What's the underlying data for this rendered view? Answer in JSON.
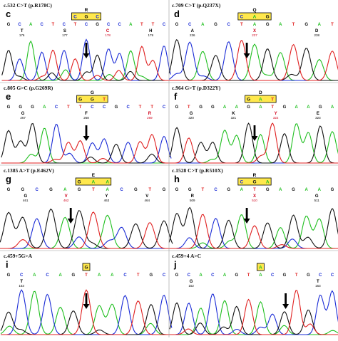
{
  "colors": {
    "A": "#1fbf1f",
    "C": "#1a2bd6",
    "G": "#111111",
    "T": "#e02020",
    "mut": "#d0021b",
    "box": "#ffe84d"
  },
  "panels": [
    {
      "letter": "c",
      "title": "c.532 C>T (p.R178C)",
      "bases": [
        "G",
        "C",
        "A",
        "C",
        "T",
        "C",
        "T",
        "C",
        "G",
        "C",
        "C",
        "A",
        "T",
        "T",
        "C"
      ],
      "codon": {
        "letters": [
          "C",
          "G",
          "C"
        ],
        "aa": "R"
      },
      "aas": [
        {
          "label": "T",
          "num": "176"
        },
        {
          "label": "S",
          "num": "177"
        },
        {
          "label": "C",
          "num": "178",
          "mut": true
        },
        {
          "label": "H",
          "num": "179"
        }
      ],
      "arrow": 0.5
    },
    {
      "letter": "d",
      "title": "c.709 C>T (p.Q237X)",
      "bases": [
        "G",
        "C",
        "A",
        "G",
        "C",
        "T",
        "A",
        "G",
        "A",
        "T",
        "G",
        "A",
        "T"
      ],
      "codon": {
        "letters": [
          "C",
          "A",
          "G"
        ],
        "aa": "Q"
      },
      "aas": [
        {
          "label": "A",
          "num": "236"
        },
        {
          "label": "X",
          "num": "237",
          "mut": true
        },
        {
          "label": "D",
          "num": "238"
        }
      ],
      "arrow": 0.45
    },
    {
      "letter": "e",
      "title": "c.805 G>C (p.G269R)",
      "bases": [
        "G",
        "G",
        "G",
        "A",
        "C",
        "T",
        "T",
        "C",
        "C",
        "G",
        "C",
        "T",
        "T",
        "C"
      ],
      "codon": {
        "letters": [
          "G",
          "G",
          "T"
        ],
        "aa": "G"
      },
      "aas": [
        {
          "label": "G",
          "num": "267"
        },
        {
          "label": "F",
          "num": "268"
        },
        {
          "label": "R",
          "num": "269",
          "mut": true
        }
      ],
      "arrow": 0.5
    },
    {
      "letter": "f",
      "title": "c.964 G>T (p.D322Y)",
      "bases": [
        "G",
        "T",
        "G",
        "G",
        "A",
        "A",
        "G",
        "A",
        "T",
        "G",
        "A",
        "A",
        "G",
        "A"
      ],
      "codon": {
        "letters": [
          "G",
          "A",
          "T"
        ],
        "aa": "D"
      },
      "aas": [
        {
          "label": "G",
          "num": "320"
        },
        {
          "label": "K",
          "num": "321"
        },
        {
          "label": "Y",
          "num": "322",
          "mut": true
        },
        {
          "label": "E",
          "num": "323"
        }
      ],
      "arrow": 0.5
    },
    {
      "letter": "g",
      "title": "c.1385 A>T (p.E462V)",
      "bases": [
        "G",
        "G",
        "C",
        "G",
        "A",
        "G",
        "T",
        "A",
        "C",
        "G",
        "T",
        "G"
      ],
      "codon": {
        "letters": [
          "G",
          "A",
          "A"
        ],
        "aa": "E"
      },
      "aas": [
        {
          "label": "G",
          "num": "461"
        },
        {
          "label": "V",
          "num": "462",
          "mut": true
        },
        {
          "label": "Y",
          "num": "463"
        },
        {
          "label": "V",
          "num": "464"
        }
      ],
      "arrow": 0.4
    },
    {
      "letter": "h",
      "title": "c.1528 C>T (p.R510X)",
      "bases": [
        "G",
        "G",
        "T",
        "C",
        "G",
        "A",
        "T",
        "G",
        "A",
        "G",
        "A",
        "A",
        "G"
      ],
      "codon": {
        "letters": [
          "C",
          "G",
          "A"
        ],
        "aa": "R"
      },
      "aas": [
        {
          "label": "R",
          "num": "509"
        },
        {
          "label": "X",
          "num": "510",
          "mut": true
        },
        {
          "label": "G",
          "num": "511"
        }
      ],
      "arrow": 0.45
    },
    {
      "letter": "i",
      "title": "c.459+5G>A",
      "bases": [
        "G",
        "C",
        "A",
        "C",
        "A",
        "G",
        "T",
        "A",
        "A",
        "C",
        "T",
        "G",
        "C"
      ],
      "codon": {
        "letters": [
          "G"
        ],
        "aa": ""
      },
      "aas": [
        {
          "label": "T",
          "num": "153"
        }
      ],
      "arrow": 0.5
    },
    {
      "letter": "j",
      "title": "c.459+4 A>C",
      "bases": [
        "G",
        "C",
        "A",
        "C",
        "A",
        "G",
        "T",
        "A",
        "C",
        "G",
        "T",
        "G",
        "C",
        "C"
      ],
      "codon": {
        "letters": [
          "A"
        ],
        "aa": ""
      },
      "aas": [
        {
          "label": "G",
          "num": "152"
        },
        {
          "label": "T",
          "num": "153"
        }
      ],
      "arrow": 0.7
    }
  ]
}
